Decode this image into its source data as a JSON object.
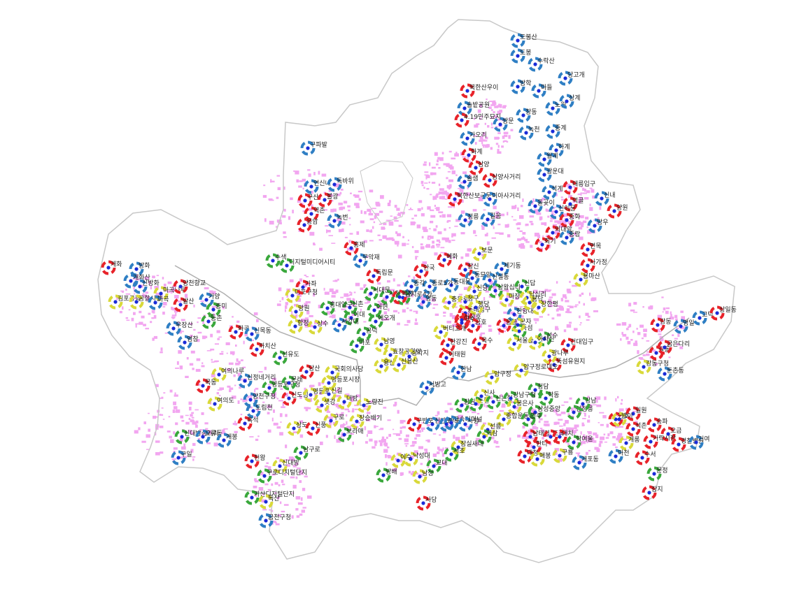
{
  "colors": {
    "blue": "#2f7fc4",
    "red": "#e8232a",
    "green": "#3aa83c",
    "yellow": "#d9d93a",
    "center": "#1a2bd8",
    "urban": "#f2a6f0",
    "border": "#c8c8c8",
    "river": "#b0b0b0"
  },
  "stations": [
    {
      "name": "도봉산",
      "color": "blue"
    },
    {
      "name": "도봉",
      "color": "blue"
    },
    {
      "name": "수락산",
      "color": "blue"
    },
    {
      "name": "당고개",
      "color": "blue"
    },
    {
      "name": "방학",
      "color": "blue"
    },
    {
      "name": "쌍문",
      "color": "blue"
    },
    {
      "name": "창동",
      "color": "blue"
    },
    {
      "name": "노원",
      "color": "blue"
    },
    {
      "name": "중계",
      "color": "blue"
    },
    {
      "name": "하계",
      "color": "blue"
    },
    {
      "name": "마들",
      "color": "blue"
    },
    {
      "name": "상계",
      "color": "blue"
    },
    {
      "name": "녹천",
      "color": "blue"
    },
    {
      "name": "월계",
      "color": "blue"
    },
    {
      "name": "광운대",
      "color": "blue"
    },
    {
      "name": "북한산우이",
      "color": "red"
    },
    {
      "name": "솔밭공원",
      "color": "blue"
    },
    {
      "name": "4.19민주묘지",
      "color": "red"
    },
    {
      "name": "가오리",
      "color": "blue"
    },
    {
      "name": "화계",
      "color": "red"
    },
    {
      "name": "삼양",
      "color": "red"
    },
    {
      "name": "솔샘",
      "color": "blue"
    },
    {
      "name": "삼양사거리",
      "color": "red"
    },
    {
      "name": "북한산보국문",
      "color": "red"
    },
    {
      "name": "미아사거리",
      "color": "blue"
    },
    {
      "name": "정릉",
      "color": "blue"
    },
    {
      "name": "길음",
      "color": "blue"
    },
    {
      "name": "석계",
      "color": "blue"
    },
    {
      "name": "태릉입구",
      "color": "red"
    },
    {
      "name": "신내",
      "color": "blue"
    },
    {
      "name": "돌곶이",
      "color": "blue"
    },
    {
      "name": "먹골",
      "color": "red"
    },
    {
      "name": "신이문",
      "color": "blue"
    },
    {
      "name": "양원",
      "color": "red"
    },
    {
      "name": "중화",
      "color": "red"
    },
    {
      "name": "망우",
      "color": "blue"
    },
    {
      "name": "외대앞",
      "color": "red"
    },
    {
      "name": "중랑",
      "color": "blue"
    },
    {
      "name": "회기",
      "color": "red"
    },
    {
      "name": "면목",
      "color": "red"
    },
    {
      "name": "사가정",
      "color": "red"
    },
    {
      "name": "용마산",
      "color": "yellow"
    },
    {
      "name": "구파발",
      "color": "blue"
    },
    {
      "name": "연신내",
      "color": "blue"
    },
    {
      "name": "독바위",
      "color": "blue"
    },
    {
      "name": "구산",
      "color": "red"
    },
    {
      "name": "불광",
      "color": "red"
    },
    {
      "name": "역촌",
      "color": "red"
    },
    {
      "name": "응암",
      "color": "red"
    },
    {
      "name": "녹번",
      "color": "blue"
    },
    {
      "name": "홍제",
      "color": "red"
    },
    {
      "name": "무악재",
      "color": "blue"
    },
    {
      "name": "독립문",
      "color": "red"
    },
    {
      "name": "보문",
      "color": "yellow"
    },
    {
      "name": "혜화",
      "color": "red"
    },
    {
      "name": "창신",
      "color": "red"
    },
    {
      "name": "제기동",
      "color": "blue"
    },
    {
      "name": "안국",
      "color": "red"
    },
    {
      "name": "동묘앞",
      "color": "blue"
    },
    {
      "name": "신설동",
      "color": "blue"
    },
    {
      "name": "동대문",
      "color": "blue"
    },
    {
      "name": "종로5가",
      "color": "blue"
    },
    {
      "name": "종각",
      "color": "blue"
    },
    {
      "name": "을지로4가",
      "color": "green"
    },
    {
      "name": "시청",
      "color": "green"
    },
    {
      "name": "서대문",
      "color": "green"
    },
    {
      "name": "명동",
      "color": "blue"
    },
    {
      "name": "충무로",
      "color": "yellow"
    },
    {
      "name": "동대입구",
      "color": "red"
    },
    {
      "name": "신당",
      "color": "yellow"
    },
    {
      "name": "상왕십리",
      "color": "green"
    },
    {
      "name": "신답",
      "color": "green"
    },
    {
      "name": "청구",
      "color": "yellow"
    },
    {
      "name": "마장",
      "color": "yellow"
    },
    {
      "name": "답십리",
      "color": "yellow"
    },
    {
      "name": "행당",
      "color": "yellow"
    },
    {
      "name": "한양대",
      "color": "blue"
    },
    {
      "name": "용답",
      "color": "yellow"
    },
    {
      "name": "장한평",
      "color": "yellow"
    },
    {
      "name": "신금호",
      "color": "red"
    },
    {
      "name": "약수",
      "color": "red"
    },
    {
      "name": "금호",
      "color": "red"
    },
    {
      "name": "응봉",
      "color": "red"
    },
    {
      "name": "뚝섬",
      "color": "green"
    },
    {
      "name": "성수",
      "color": "green"
    },
    {
      "name": "버티고개",
      "color": "yellow"
    },
    {
      "name": "옥수",
      "color": "red"
    },
    {
      "name": "서울숲",
      "color": "yellow"
    },
    {
      "name": "건대입구",
      "color": "red"
    },
    {
      "name": "한강진",
      "color": "red"
    },
    {
      "name": "이태원",
      "color": "red"
    },
    {
      "name": "한남",
      "color": "blue"
    },
    {
      "name": "뚝섬유원지",
      "color": "red"
    },
    {
      "name": "군자",
      "color": "yellow"
    },
    {
      "name": "아차산",
      "color": "yellow"
    },
    {
      "name": "광나루",
      "color": "yellow"
    },
    {
      "name": "천호",
      "color": "red"
    },
    {
      "name": "강동",
      "color": "red"
    },
    {
      "name": "길동",
      "color": "red"
    },
    {
      "name": "굽은다리",
      "color": "red"
    },
    {
      "name": "명일",
      "color": "blue"
    },
    {
      "name": "고덕",
      "color": "blue"
    },
    {
      "name": "상일동",
      "color": "red"
    },
    {
      "name": "강동구청",
      "color": "yellow"
    },
    {
      "name": "둔촌동",
      "color": "blue"
    },
    {
      "name": "신촌",
      "color": "green"
    },
    {
      "name": "이대",
      "color": "green"
    },
    {
      "name": "아현",
      "color": "green"
    },
    {
      "name": "애오개",
      "color": "green"
    },
    {
      "name": "홍대입구",
      "color": "green"
    },
    {
      "name": "서강대",
      "color": "blue"
    },
    {
      "name": "공덕",
      "color": "green"
    },
    {
      "name": "마포",
      "color": "green"
    },
    {
      "name": "남영",
      "color": "yellow"
    },
    {
      "name": "효창공원앞",
      "color": "yellow"
    },
    {
      "name": "삼각지",
      "color": "yellow"
    },
    {
      "name": "용산",
      "color": "yellow"
    },
    {
      "name": "신용산",
      "color": "yellow"
    },
    {
      "name": "서빙고",
      "color": "blue"
    },
    {
      "name": "상수",
      "color": "yellow"
    },
    {
      "name": "합정",
      "color": "yellow"
    },
    {
      "name": "망원",
      "color": "yellow"
    },
    {
      "name": "마포구청",
      "color": "yellow"
    },
    {
      "name": "가좌",
      "color": "red"
    },
    {
      "name": "수색",
      "color": "green"
    },
    {
      "name": "디지털미디어시티",
      "color": "green"
    },
    {
      "name": "개화",
      "color": "red"
    },
    {
      "name": "방화",
      "color": "blue"
    },
    {
      "name": "개화산",
      "color": "blue"
    },
    {
      "name": "신방화",
      "color": "blue"
    },
    {
      "name": "김포공항",
      "color": "yellow"
    },
    {
      "name": "공항시장",
      "color": "yellow"
    },
    {
      "name": "마곡나루",
      "color": "yellow"
    },
    {
      "name": "마곡",
      "color": "blue"
    },
    {
      "name": "양천향교",
      "color": "red"
    },
    {
      "name": "발산",
      "color": "red"
    },
    {
      "name": "가양",
      "color": "blue"
    },
    {
      "name": "증미",
      "color": "green"
    },
    {
      "name": "우장산",
      "color": "blue"
    },
    {
      "name": "등촌",
      "color": "green"
    },
    {
      "name": "화곡",
      "color": "red"
    },
    {
      "name": "염창",
      "color": "blue"
    },
    {
      "name": "신목동",
      "color": "blue"
    },
    {
      "name": "까치산",
      "color": "red"
    },
    {
      "name": "선유도",
      "color": "green"
    },
    {
      "name": "당산",
      "color": "red"
    },
    {
      "name": "국회의사당",
      "color": "yellow"
    },
    {
      "name": "여의나루",
      "color": "yellow"
    },
    {
      "name": "목동",
      "color": "red"
    },
    {
      "name": "신정네거리",
      "color": "blue"
    },
    {
      "name": "영등포구청",
      "color": "green"
    },
    {
      "name": "문래",
      "color": "green"
    },
    {
      "name": "영등포시장",
      "color": "yellow"
    },
    {
      "name": "여의도",
      "color": "yellow"
    },
    {
      "name": "양천구청",
      "color": "blue"
    },
    {
      "name": "도림천",
      "color": "blue"
    },
    {
      "name": "신도림",
      "color": "red"
    },
    {
      "name": "영등포",
      "color": "yellow"
    },
    {
      "name": "신길",
      "color": "yellow"
    },
    {
      "name": "샛강",
      "color": "yellow"
    },
    {
      "name": "대방",
      "color": "yellow"
    },
    {
      "name": "노량진",
      "color": "yellow"
    },
    {
      "name": "흑석",
      "color": "red"
    },
    {
      "name": "구로",
      "color": "yellow"
    },
    {
      "name": "장승배기",
      "color": "yellow"
    },
    {
      "name": "상도",
      "color": "yellow"
    },
    {
      "name": "신풍",
      "color": "red"
    },
    {
      "name": "보라매",
      "color": "green"
    },
    {
      "name": "신대방삼거리",
      "color": "green"
    },
    {
      "name": "오류동",
      "color": "blue"
    },
    {
      "name": "개봉",
      "color": "blue"
    },
    {
      "name": "구일",
      "color": "blue"
    },
    {
      "name": "천왕",
      "color": "red"
    },
    {
      "name": "남구로",
      "color": "green"
    },
    {
      "name": "신대방",
      "color": "yellow"
    },
    {
      "name": "구로디지털단지",
      "color": "green"
    },
    {
      "name": "가산디지털단지",
      "color": "green"
    },
    {
      "name": "독산",
      "color": "yellow"
    },
    {
      "name": "금천구청",
      "color": "blue"
    },
    {
      "name": "구반포",
      "color": "red"
    },
    {
      "name": "신반포",
      "color": "blue"
    },
    {
      "name": "반포",
      "color": "blue"
    },
    {
      "name": "고속터미널",
      "color": "blue"
    },
    {
      "name": "사평",
      "color": "blue"
    },
    {
      "name": "잠원",
      "color": "green"
    },
    {
      "name": "논현",
      "color": "green"
    },
    {
      "name": "신사",
      "color": "yellow"
    },
    {
      "name": "신논현",
      "color": "green"
    },
    {
      "name": "압구정",
      "color": "yellow"
    },
    {
      "name": "압구정로데오",
      "color": "yellow"
    },
    {
      "name": "청담",
      "color": "green"
    },
    {
      "name": "강남구청",
      "color": "green"
    },
    {
      "name": "학동",
      "color": "green"
    },
    {
      "name": "봉은사",
      "color": "yellow"
    },
    {
      "name": "삼성중앙",
      "color": "green"
    },
    {
      "name": "선정릉",
      "color": "green"
    },
    {
      "name": "종합운동장",
      "color": "yellow"
    },
    {
      "name": "언주",
      "color": "green"
    },
    {
      "name": "선릉",
      "color": "yellow"
    },
    {
      "name": "역삼",
      "color": "green"
    },
    {
      "name": "강남",
      "color": "green"
    },
    {
      "name": "잠실새내",
      "color": "yellow"
    },
    {
      "name": "서초",
      "color": "green"
    },
    {
      "name": "교대",
      "color": "green"
    },
    {
      "name": "방배",
      "color": "green"
    },
    {
      "name": "낙성대",
      "color": "yellow"
    },
    {
      "name": "이수",
      "color": "yellow"
    },
    {
      "name": "남성",
      "color": "yellow"
    },
    {
      "name": "사당",
      "color": "red"
    },
    {
      "name": "남태령",
      "color": "red"
    },
    {
      "name": "한티",
      "color": "red"
    },
    {
      "name": "도곡",
      "color": "red"
    },
    {
      "name": "대치",
      "color": "red"
    },
    {
      "name": "학여울",
      "color": "green"
    },
    {
      "name": "대청",
      "color": "red"
    },
    {
      "name": "매봉",
      "color": "yellow"
    },
    {
      "name": "구룡",
      "color": "yellow"
    },
    {
      "name": "개포동",
      "color": "blue"
    },
    {
      "name": "일원",
      "color": "red"
    },
    {
      "name": "방이",
      "color": "yellow"
    },
    {
      "name": "석촌",
      "color": "red"
    },
    {
      "name": "송파",
      "color": "red"
    },
    {
      "name": "오금",
      "color": "red"
    },
    {
      "name": "개롱",
      "color": "yellow"
    },
    {
      "name": "가락시장",
      "color": "red"
    },
    {
      "name": "경찰병원",
      "color": "red"
    },
    {
      "name": "거여",
      "color": "blue"
    },
    {
      "name": "마천",
      "color": "blue"
    },
    {
      "name": "수서",
      "color": "red"
    },
    {
      "name": "문정",
      "color": "green"
    },
    {
      "name": "장지",
      "color": "red"
    },
    {
      "name": "복정",
      "color": "red"
    }
  ]
}
